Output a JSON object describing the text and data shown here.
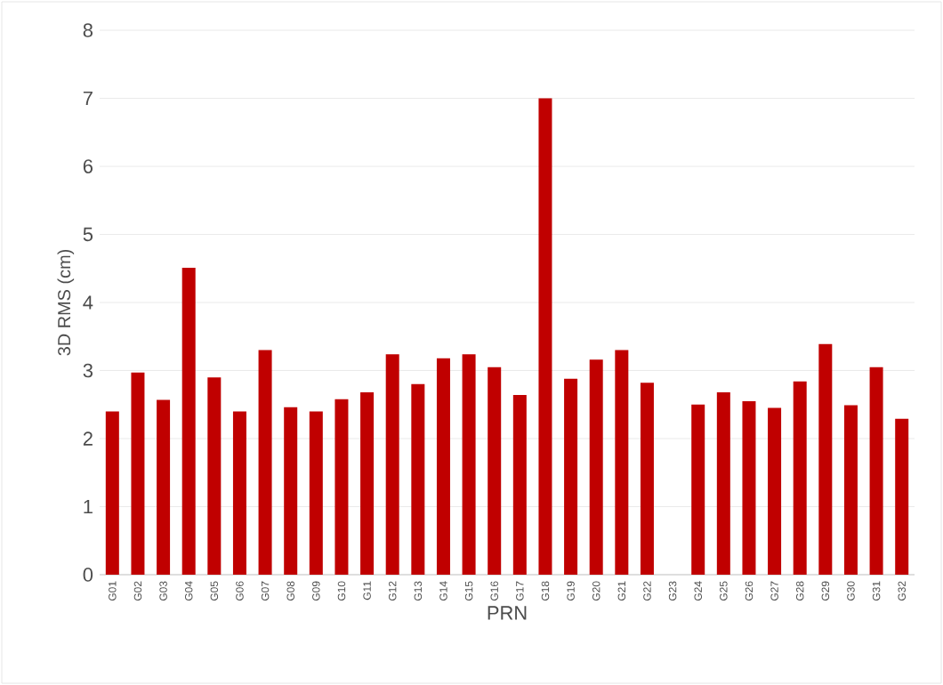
{
  "chart_data": {
    "type": "bar",
    "xlabel": "PRN",
    "ylabel": "3D RMS (cm)",
    "categories": [
      "G01",
      "G02",
      "G03",
      "G04",
      "G05",
      "G06",
      "G07",
      "G08",
      "G09",
      "G10",
      "G11",
      "G12",
      "G13",
      "G14",
      "G15",
      "G16",
      "G17",
      "G18",
      "G19",
      "G20",
      "G21",
      "G22",
      "G23",
      "G24",
      "G25",
      "G26",
      "G27",
      "G28",
      "G29",
      "G30",
      "G31",
      "G32"
    ],
    "values": [
      2.4,
      2.97,
      2.57,
      4.51,
      2.9,
      2.4,
      3.3,
      2.46,
      2.4,
      2.58,
      2.68,
      3.24,
      2.8,
      3.18,
      3.24,
      3.05,
      2.64,
      7.0,
      2.88,
      3.16,
      3.3,
      2.82,
      null,
      2.5,
      2.68,
      2.55,
      2.45,
      2.84,
      3.39,
      2.49,
      3.05,
      2.29
    ],
    "color": "#c00000",
    "ylim": [
      0,
      8
    ],
    "yticks": [
      0,
      1,
      2,
      3,
      4,
      5,
      6,
      7,
      8
    ],
    "grid": "y"
  }
}
